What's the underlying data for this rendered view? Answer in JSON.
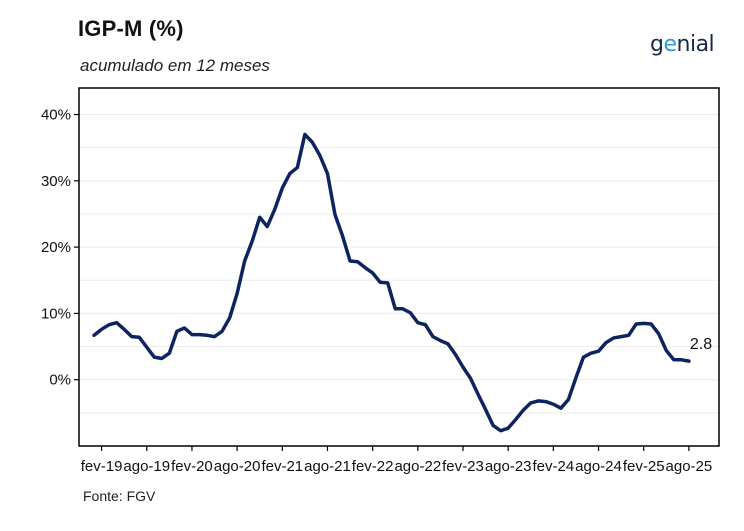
{
  "header": {
    "title": "IGP-M (%)",
    "subtitle": "acumulado em 12 meses"
  },
  "logo": {
    "text": "genial"
  },
  "footer": {
    "source": "Fonte: FGV"
  },
  "colors": {
    "line": "#0d2461",
    "frame": "#000000",
    "grid": "#ececec",
    "logo_accent": "#2a9fd6"
  },
  "chart_data": {
    "type": "line",
    "title": "IGP-M (%)",
    "subtitle": "acumulado em 12 meses",
    "xlabel": "",
    "ylabel": "",
    "x_start": "2019-01",
    "x_end": "2025-08",
    "xlim": [
      "2018-11",
      "2025-12"
    ],
    "ylim": [
      -10,
      44
    ],
    "y_ticks": [
      0,
      10,
      20,
      30,
      40
    ],
    "y_tick_labels": [
      "0%",
      "10%",
      "20%",
      "30%",
      "40%"
    ],
    "x_ticks": [
      "2019-02",
      "2019-08",
      "2020-02",
      "2020-08",
      "2021-02",
      "2021-08",
      "2022-02",
      "2022-08",
      "2023-02",
      "2023-08",
      "2024-02",
      "2024-08",
      "2025-02",
      "2025-08"
    ],
    "x_tick_labels": [
      "fev-19",
      "ago-19",
      "fev-20",
      "ago-20",
      "fev-21",
      "ago-21",
      "fev-22",
      "ago-22",
      "fev-23",
      "ago-23",
      "fev-24",
      "ago-24",
      "fev-25",
      "ago-25"
    ],
    "grid": true,
    "series": [
      {
        "values": [
          6.7,
          7.6,
          8.3,
          8.6,
          7.6,
          6.5,
          6.4,
          4.9,
          3.4,
          3.2,
          4.0,
          7.3,
          7.8,
          6.8,
          6.8,
          6.7,
          6.5,
          7.3,
          9.3,
          13.0,
          17.9,
          20.9,
          24.5,
          23.1,
          25.7,
          28.9,
          31.1,
          32.0,
          37.0,
          35.8,
          33.8,
          31.1,
          24.9,
          21.7,
          17.9,
          17.8,
          16.9,
          16.1,
          14.7,
          14.6,
          10.7,
          10.7,
          10.1,
          8.6,
          8.3,
          6.5,
          5.9,
          5.4,
          3.8,
          1.9,
          0.2,
          -2.2,
          -4.5,
          -6.9,
          -7.7,
          -7.3,
          -6.0,
          -4.6,
          -3.5,
          -3.2,
          -3.3,
          -3.7,
          -4.3,
          -3.0,
          0.3,
          3.4,
          4.0,
          4.3,
          5.6,
          6.3,
          6.5,
          6.7,
          8.4,
          8.5,
          8.4,
          6.9,
          4.4,
          3.0,
          3.0,
          2.8
        ]
      }
    ],
    "annotations": [
      {
        "x": "2025-08",
        "y": 2.8,
        "text": "2.8"
      }
    ]
  }
}
